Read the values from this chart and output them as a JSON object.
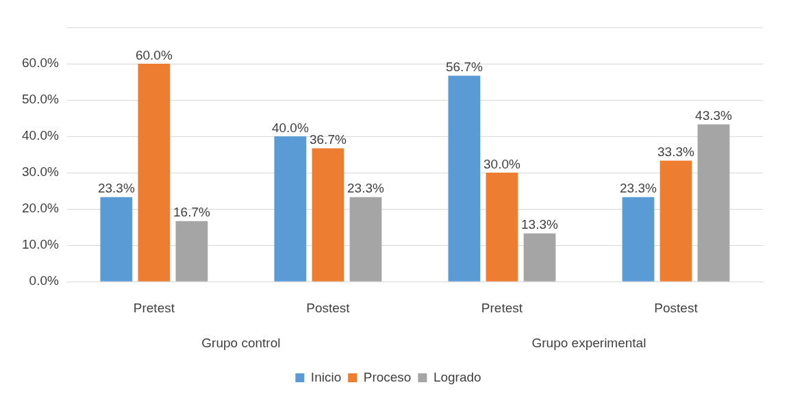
{
  "chart_data": {
    "type": "bar",
    "categories": [
      "Pretest",
      "Postest",
      "Pretest",
      "Postest"
    ],
    "series": [
      {
        "name": "Inicio",
        "color": "#5b9bd5",
        "values": [
          23.3,
          40.0,
          56.7,
          23.3
        ],
        "value_labels": [
          "23.3%",
          "40.0%",
          "56.7%",
          "23.3%"
        ]
      },
      {
        "name": "Proceso",
        "color": "#ed7d31",
        "values": [
          60.0,
          36.7,
          30.0,
          33.3
        ],
        "value_labels": [
          "60.0%",
          "36.7%",
          "30.0%",
          "33.3%"
        ]
      },
      {
        "name": "Logrado",
        "color": "#a5a5a5",
        "values": [
          16.7,
          23.3,
          13.3,
          43.3
        ],
        "value_labels": [
          "16.7%",
          "23.3%",
          "13.3%",
          "43.3%"
        ]
      }
    ],
    "ylim": [
      0,
      70
    ],
    "yticks": [
      {
        "value": 0,
        "label": "0.0%"
      },
      {
        "value": 10,
        "label": "10.0%"
      },
      {
        "value": 20,
        "label": "20.0%"
      },
      {
        "value": 30,
        "label": "30.0%"
      },
      {
        "value": 40,
        "label": "40.0%"
      },
      {
        "value": 50,
        "label": "50.0%"
      },
      {
        "value": 60,
        "label": "60.0%"
      },
      {
        "value": 70,
        "label": null
      }
    ],
    "grid": "y",
    "legend": "bottom",
    "annotations": [
      "Grupo control",
      "Grupo experimental"
    ]
  }
}
